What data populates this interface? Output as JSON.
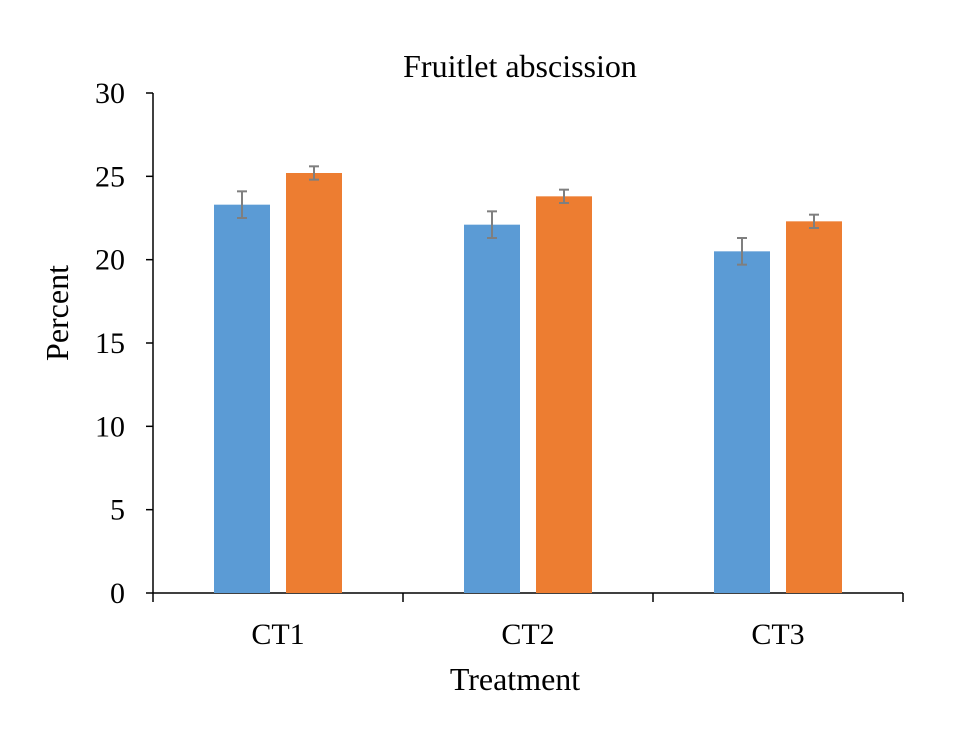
{
  "chart_data": {
    "type": "bar",
    "title": "Fruitlet abscission",
    "xlabel": "Treatment",
    "ylabel": "Percent",
    "categories": [
      "CT1",
      "CT2",
      "CT3"
    ],
    "ylim": [
      0,
      30
    ],
    "yticks": [
      0,
      5,
      10,
      15,
      20,
      25,
      30
    ],
    "grid": false,
    "legend": "none",
    "series": [
      {
        "values": [
          23.3,
          22.1,
          20.5
        ],
        "errors": [
          0.8,
          0.8,
          0.8
        ],
        "color": "#5b9bd5"
      },
      {
        "values": [
          25.2,
          23.8,
          22.3
        ],
        "errors": [
          0.4,
          0.4,
          0.4
        ],
        "color": "#ed7d31"
      }
    ],
    "error_bar_color": "#7f7f7f"
  }
}
